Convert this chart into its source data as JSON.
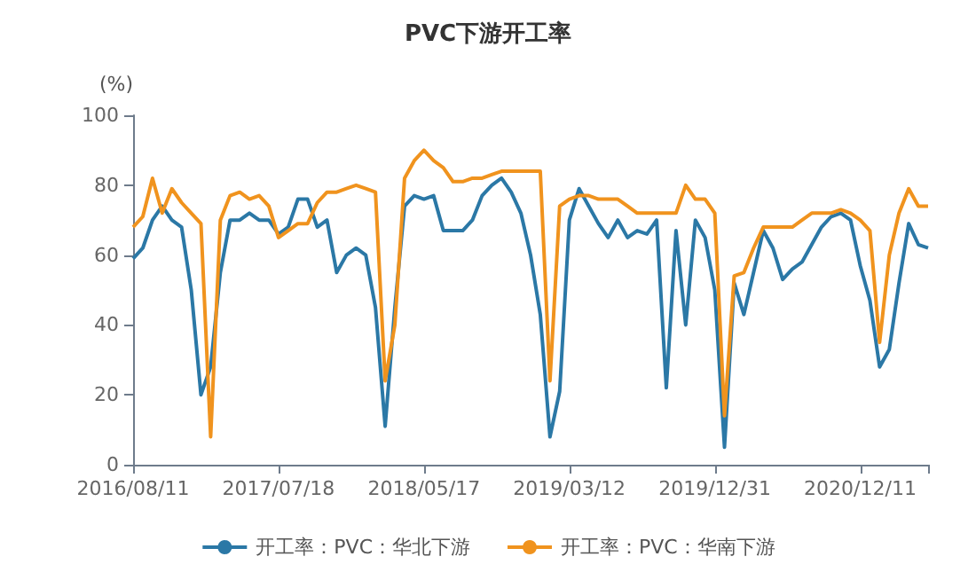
{
  "chart_data": {
    "type": "line",
    "title": "PVC下游开工率",
    "ylabel": "(%)",
    "categories": [
      "2016/08/11",
      null,
      null,
      null,
      null,
      null,
      null,
      null,
      null,
      null,
      null,
      null,
      null,
      null,
      null,
      "2017/07/18",
      null,
      null,
      null,
      null,
      null,
      null,
      null,
      null,
      null,
      null,
      null,
      null,
      null,
      null,
      "2018/05/17",
      null,
      null,
      null,
      null,
      null,
      null,
      null,
      null,
      null,
      null,
      null,
      null,
      null,
      null,
      "2019/03/12",
      null,
      null,
      null,
      null,
      null,
      null,
      null,
      null,
      null,
      null,
      null,
      null,
      null,
      null,
      "2019/12/31",
      null,
      null,
      null,
      null,
      null,
      null,
      null,
      null,
      null,
      null,
      null,
      null,
      null,
      null,
      "2020/12/11",
      null,
      null,
      null,
      null,
      null,
      null,
      null
    ],
    "series": [
      {
        "name": "开工率：PVC：华北下游",
        "color": "#2b78a6",
        "values": [
          59,
          62,
          70,
          74,
          70,
          68,
          50,
          20,
          28,
          55,
          70,
          70,
          72,
          70,
          70,
          66,
          68,
          76,
          76,
          68,
          70,
          55,
          60,
          62,
          60,
          45,
          11,
          45,
          74,
          77,
          76,
          77,
          67,
          67,
          67,
          70,
          77,
          80,
          82,
          78,
          72,
          60,
          43,
          8,
          21,
          70,
          79,
          74,
          69,
          65,
          70,
          65,
          67,
          66,
          70,
          22,
          67,
          40,
          70,
          65,
          50,
          5,
          52,
          43,
          55,
          67,
          62,
          53,
          56,
          58,
          63,
          68,
          71,
          72,
          70,
          57,
          47,
          28,
          33,
          52,
          69,
          63,
          62
        ]
      },
      {
        "name": "开工率：PVC：华南下游",
        "color": "#f0931e",
        "values": [
          68,
          71,
          82,
          72,
          79,
          75,
          72,
          69,
          8,
          70,
          77,
          78,
          76,
          77,
          74,
          65,
          67,
          69,
          69,
          75,
          78,
          78,
          79,
          80,
          79,
          78,
          24,
          40,
          82,
          87,
          90,
          87,
          85,
          81,
          81,
          82,
          82,
          83,
          84,
          84,
          84,
          84,
          84,
          24,
          74,
          76,
          77,
          77,
          76,
          76,
          76,
          74,
          72,
          72,
          72,
          72,
          72,
          80,
          76,
          76,
          72,
          14,
          54,
          55,
          62,
          68,
          68,
          68,
          68,
          70,
          72,
          72,
          72,
          73,
          72,
          70,
          67,
          35,
          60,
          72,
          79,
          74,
          74
        ]
      }
    ],
    "ylim": [
      0,
      100
    ],
    "yticks": [
      0,
      20,
      40,
      60,
      80,
      100
    ],
    "legend": "bottom"
  }
}
